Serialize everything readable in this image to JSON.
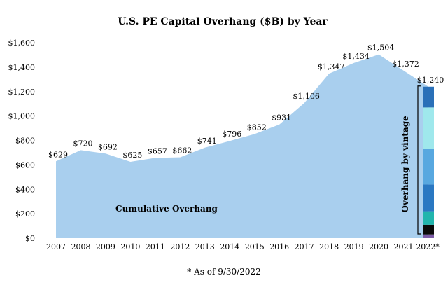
{
  "chart_data": {
    "type": "area",
    "title": "U.S. PE Capital Overhang ($B) by Year",
    "categories": [
      "2007",
      "2008",
      "2009",
      "2010",
      "2011",
      "2012",
      "2013",
      "2014",
      "2015",
      "2016",
      "2017",
      "2018",
      "2019",
      "2020",
      "2021",
      "2022*"
    ],
    "series": [
      {
        "values": [
          629,
          720,
          692,
          625,
          657,
          662,
          741,
          796,
          852,
          931,
          1106,
          1347,
          1434,
          1504,
          1372,
          1240
        ]
      }
    ],
    "data_labels": [
      "$629",
      "$720",
      "$692",
      "$625",
      "$657",
      "$662",
      "$741",
      "$796",
      "$852",
      "$931",
      "$1,106",
      "$1,347",
      "$1,434",
      "$1,504",
      "$1,372",
      "$1,240"
    ],
    "ylim": [
      0,
      1600
    ],
    "y_ticks": [
      0,
      200,
      400,
      600,
      800,
      1000,
      1200,
      1400,
      1600
    ],
    "y_tick_labels": [
      "$0",
      "$200",
      "$400",
      "$600",
      "$800",
      "$1,000",
      "$1,200",
      "$1,400",
      "$1,600"
    ],
    "area_annotation": "Cumulative Overhang",
    "vintage_label": "Overhang by vintage",
    "vintage_stack": [
      {
        "value": 30,
        "color": "#7b5aa6"
      },
      {
        "value": 80,
        "color": "#0a0a0a"
      },
      {
        "value": 110,
        "color": "#21b5ad"
      },
      {
        "value": 220,
        "color": "#2a78c2"
      },
      {
        "value": 290,
        "color": "#58a8e0"
      },
      {
        "value": 340,
        "color": "#9fe8ec"
      },
      {
        "value": 170,
        "color": "#2a70b8"
      }
    ],
    "footnote": "* As of 9/30/2022",
    "colors": {
      "area": "#a9cfee",
      "text": "#000000"
    },
    "grid": false
  }
}
